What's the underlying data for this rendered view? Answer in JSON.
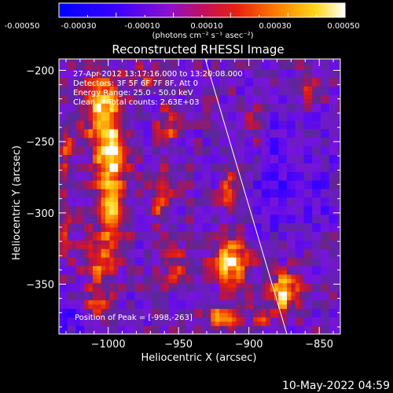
{
  "colorbar": {
    "ticks": [
      "-0.00050",
      "-0.00030",
      "-0.00010",
      "0.00010",
      "0.00030",
      "0.00050"
    ],
    "units": "(photons cm⁻² s⁻¹ asec⁻²)",
    "range": [
      -0.0005,
      0.0005
    ]
  },
  "chart_data": {
    "type": "heatmap",
    "title": "Reconstructed RHESSI Image",
    "xlabel": "Heliocentric X (arcsec)",
    "ylabel": "Heliocentric Y (arcsec)",
    "xlim": [
      -1035,
      -835
    ],
    "ylim": [
      -385,
      -192
    ],
    "xticks": [
      -1000,
      -950,
      -900,
      -850
    ],
    "xtick_labels": [
      "−1000",
      "−950",
      "−900",
      "−850"
    ],
    "yticks": [
      -200,
      -250,
      -300,
      -350
    ],
    "ytick_labels": [
      "−200",
      "−250",
      "−300",
      "−350"
    ],
    "annotations": [
      "27-Apr-2012 13:17:16.000 to 13:20:08.000",
      "Detectors: 3F 5F 6F 7F 8F, Att 0",
      "Energy Range: 25.0 - 50.0 keV",
      "Clean     Total counts: 2.63E+03"
    ],
    "peak_text": "Position of Peak = [-998,-263]",
    "peak": [
      -998,
      -263
    ],
    "limb_line": [
      [
        -931,
        -192
      ],
      [
        -873,
        -385
      ]
    ],
    "sources": [
      {
        "x": -1003,
        "y": -228,
        "sx": 9,
        "sy": 18,
        "amp": 1.0
      },
      {
        "x": -998,
        "y": -263,
        "sx": 8,
        "sy": 14,
        "amp": 1.0
      },
      {
        "x": -997,
        "y": -300,
        "sx": 7,
        "sy": 12,
        "amp": 0.95
      },
      {
        "x": -1005,
        "y": -333,
        "sx": 8,
        "sy": 10,
        "amp": 0.75
      },
      {
        "x": -1008,
        "y": -360,
        "sx": 6,
        "sy": 8,
        "amp": 0.55
      },
      {
        "x": -958,
        "y": -240,
        "sx": 5,
        "sy": 10,
        "amp": 0.5
      },
      {
        "x": -962,
        "y": -290,
        "sx": 5,
        "sy": 14,
        "amp": 0.55
      },
      {
        "x": -953,
        "y": -338,
        "sx": 6,
        "sy": 10,
        "amp": 0.45
      },
      {
        "x": -912,
        "y": -333,
        "sx": 9,
        "sy": 11,
        "amp": 1.0
      },
      {
        "x": -915,
        "y": -285,
        "sx": 4,
        "sy": 10,
        "amp": 0.6
      },
      {
        "x": -918,
        "y": -372,
        "sx": 8,
        "sy": 6,
        "amp": 0.7
      },
      {
        "x": -875,
        "y": -355,
        "sx": 7,
        "sy": 10,
        "amp": 0.95
      },
      {
        "x": -893,
        "y": -372,
        "sx": 5,
        "sy": 6,
        "amp": 0.55
      },
      {
        "x": -1030,
        "y": -255,
        "sx": 3,
        "sy": 12,
        "amp": 0.55
      },
      {
        "x": -1030,
        "y": -310,
        "sx": 4,
        "sy": 12,
        "amp": 0.45
      },
      {
        "x": -895,
        "y": -240,
        "sx": 6,
        "sy": 10,
        "amp": 0.3
      },
      {
        "x": -860,
        "y": -210,
        "sx": 6,
        "sy": 8,
        "amp": 0.35
      },
      {
        "x": -975,
        "y": -205,
        "sx": 6,
        "sy": 6,
        "amp": 0.4
      }
    ],
    "negative_regions": [
      {
        "x": -880,
        "y": -270,
        "sx": 12,
        "sy": 30,
        "amp": 0.35
      },
      {
        "x": -1025,
        "y": -375,
        "sx": 6,
        "sy": 6,
        "amp": 0.4
      },
      {
        "x": -850,
        "y": -280,
        "sx": 8,
        "sy": 20,
        "amp": 0.25
      }
    ]
  },
  "footer": {
    "timestamp": "10-May-2022 04:59"
  }
}
